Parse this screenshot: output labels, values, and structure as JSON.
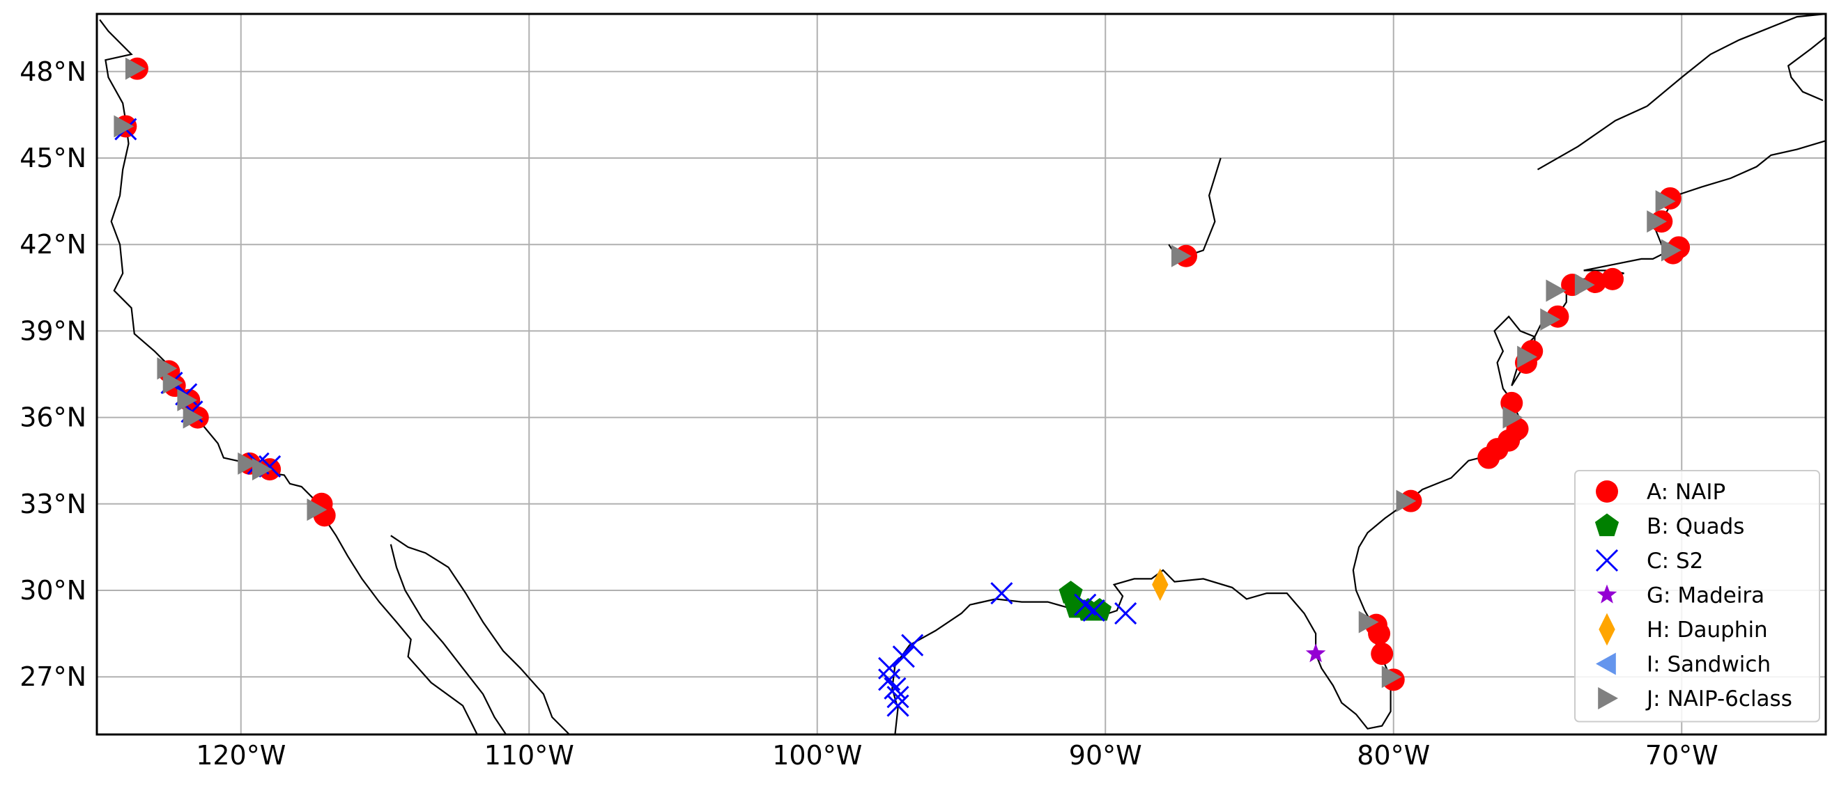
{
  "chart_data": {
    "type": "scatter",
    "projection": "PlateCarree",
    "xlim": [
      -125,
      -65
    ],
    "ylim": [
      25,
      50
    ],
    "grid": true,
    "legend_position": "lower-right",
    "x_ticks": [
      {
        "value": -120,
        "label": "120°W"
      },
      {
        "value": -110,
        "label": "110°W"
      },
      {
        "value": -100,
        "label": "100°W"
      },
      {
        "value": -90,
        "label": "90°W"
      },
      {
        "value": -80,
        "label": "80°W"
      },
      {
        "value": -70,
        "label": "70°W"
      }
    ],
    "y_ticks": [
      {
        "value": 48,
        "label": "48°N"
      },
      {
        "value": 45,
        "label": "45°N"
      },
      {
        "value": 42,
        "label": "42°N"
      },
      {
        "value": 39,
        "label": "39°N"
      },
      {
        "value": 36,
        "label": "36°N"
      },
      {
        "value": 33,
        "label": "33°N"
      },
      {
        "value": 30,
        "label": "30°N"
      },
      {
        "value": 27,
        "label": "27°N"
      }
    ],
    "series": [
      {
        "name": "A: NAIP",
        "marker": "circle",
        "color": "#ff0000",
        "points": [
          [
            -123.6,
            48.1
          ],
          [
            -124.0,
            46.1
          ],
          [
            -122.5,
            37.6
          ],
          [
            -122.3,
            37.1
          ],
          [
            -121.8,
            36.6
          ],
          [
            -121.5,
            36.0
          ],
          [
            -119.7,
            34.4
          ],
          [
            -119.0,
            34.2
          ],
          [
            -117.2,
            33.0
          ],
          [
            -117.1,
            32.6
          ],
          [
            -87.2,
            41.6
          ],
          [
            -70.4,
            43.6
          ],
          [
            -70.7,
            42.8
          ],
          [
            -70.1,
            41.9
          ],
          [
            -70.3,
            41.7
          ],
          [
            -72.4,
            40.8
          ],
          [
            -73.0,
            40.7
          ],
          [
            -73.8,
            40.6
          ],
          [
            -74.3,
            39.5
          ],
          [
            -75.2,
            38.3
          ],
          [
            -75.4,
            37.9
          ],
          [
            -75.9,
            36.5
          ],
          [
            -75.7,
            35.6
          ],
          [
            -76.0,
            35.2
          ],
          [
            -76.4,
            34.9
          ],
          [
            -76.7,
            34.6
          ],
          [
            -79.4,
            33.1
          ],
          [
            -80.6,
            28.8
          ],
          [
            -80.5,
            28.5
          ],
          [
            -80.4,
            27.8
          ],
          [
            -80.0,
            26.9
          ]
        ]
      },
      {
        "name": "B: Quads",
        "marker": "pentagon",
        "color": "#008000",
        "points": [
          [
            -91.2,
            29.9
          ],
          [
            -91.0,
            29.4
          ],
          [
            -90.6,
            29.3
          ],
          [
            -90.2,
            29.3
          ]
        ]
      },
      {
        "name": "C: S2",
        "marker": "x",
        "color": "#0000ff",
        "points": [
          [
            -124.0,
            46.0
          ],
          [
            -122.4,
            37.2
          ],
          [
            -121.9,
            36.8
          ],
          [
            -121.7,
            36.2
          ],
          [
            -119.4,
            34.4
          ],
          [
            -119.0,
            34.3
          ],
          [
            -93.6,
            29.9
          ],
          [
            -90.7,
            29.5
          ],
          [
            -90.4,
            29.3
          ],
          [
            -89.3,
            29.2
          ],
          [
            -96.7,
            28.1
          ],
          [
            -97.0,
            27.7
          ],
          [
            -97.5,
            27.3
          ],
          [
            -97.5,
            26.9
          ],
          [
            -97.3,
            26.6
          ],
          [
            -97.2,
            26.3
          ],
          [
            -97.2,
            26.0
          ]
        ]
      },
      {
        "name": "G: Madeira",
        "marker": "star",
        "color": "#9400d3",
        "points": [
          [
            -82.7,
            27.8
          ]
        ]
      },
      {
        "name": "H: Dauphin",
        "marker": "diamond",
        "color": "#ffa500",
        "points": [
          [
            -88.1,
            30.2
          ]
        ]
      },
      {
        "name": "I: Sandwich",
        "marker": "triangle-left",
        "color": "#6495ed",
        "points": []
      },
      {
        "name": "J: NAIP-6class",
        "marker": "triangle-right",
        "color": "#808080",
        "points": [
          [
            -123.7,
            48.1
          ],
          [
            -124.1,
            46.1
          ],
          [
            -122.6,
            37.7
          ],
          [
            -122.4,
            37.2
          ],
          [
            -121.9,
            36.6
          ],
          [
            -121.7,
            36.0
          ],
          [
            -119.8,
            34.4
          ],
          [
            -119.3,
            34.2
          ],
          [
            -117.4,
            32.8
          ],
          [
            -87.4,
            41.6
          ],
          [
            -70.6,
            43.5
          ],
          [
            -70.9,
            42.8
          ],
          [
            -70.4,
            41.8
          ],
          [
            -73.4,
            40.6
          ],
          [
            -74.4,
            40.4
          ],
          [
            -74.6,
            39.4
          ],
          [
            -75.4,
            38.1
          ],
          [
            -75.9,
            36.0
          ],
          [
            -79.6,
            33.1
          ],
          [
            -80.9,
            28.9
          ],
          [
            -80.1,
            27.0
          ]
        ]
      }
    ]
  }
}
